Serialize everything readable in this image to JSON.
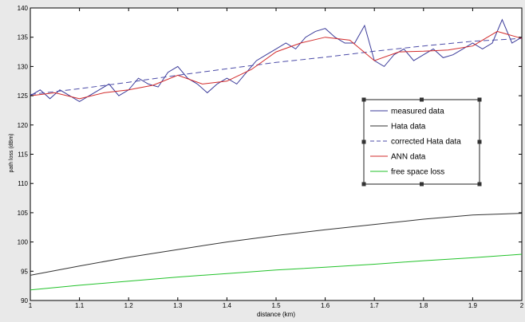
{
  "chart_data": {
    "type": "line",
    "xlabel": "distance (km)",
    "ylabel": "path loss (dBm)",
    "xlim": [
      1,
      2
    ],
    "ylim": [
      90,
      140
    ],
    "x_ticks": [
      "1",
      "1.1",
      "1.2",
      "1.3",
      "1.4",
      "1.5",
      "1.6",
      "1.7",
      "1.8",
      "1.9",
      "2"
    ],
    "y_ticks": [
      "90",
      "95",
      "100",
      "105",
      "110",
      "115",
      "120",
      "125",
      "130",
      "135",
      "140"
    ],
    "grid": false,
    "legend_position": "center-right",
    "series": [
      {
        "name": "measured data",
        "color": "#3b3b9a",
        "style": "solid",
        "x": [
          1.0,
          1.02,
          1.04,
          1.06,
          1.08,
          1.1,
          1.12,
          1.14,
          1.16,
          1.18,
          1.2,
          1.22,
          1.24,
          1.26,
          1.28,
          1.3,
          1.32,
          1.34,
          1.36,
          1.38,
          1.4,
          1.42,
          1.44,
          1.46,
          1.48,
          1.5,
          1.52,
          1.54,
          1.56,
          1.58,
          1.6,
          1.62,
          1.64,
          1.66,
          1.68,
          1.7,
          1.72,
          1.74,
          1.76,
          1.78,
          1.8,
          1.82,
          1.84,
          1.86,
          1.88,
          1.9,
          1.92,
          1.94,
          1.96,
          1.98,
          2.0
        ],
        "values": [
          125,
          126,
          124.5,
          126,
          125,
          124,
          125,
          126,
          127,
          125,
          126,
          128,
          127,
          126.5,
          129,
          130,
          128,
          127,
          125.5,
          127,
          128,
          127,
          129,
          131,
          132,
          133,
          134,
          133,
          135,
          136,
          136.5,
          135,
          134,
          134,
          137,
          131,
          130,
          132,
          133,
          131,
          132,
          133,
          131.5,
          132,
          133,
          134,
          133,
          134,
          138,
          134,
          135
        ]
      },
      {
        "name": "Hata data",
        "color": "#333333",
        "style": "solid",
        "x": [
          1.0,
          1.1,
          1.2,
          1.3,
          1.4,
          1.5,
          1.6,
          1.7,
          1.8,
          1.9,
          2.0
        ],
        "values": [
          94.3,
          95.9,
          97.4,
          98.7,
          100.0,
          101.1,
          102.1,
          103.0,
          103.9,
          104.6,
          104.9
        ]
      },
      {
        "name": "corrected Hata data",
        "color": "#4c4ca8",
        "style": "dashed",
        "x": [
          1.0,
          1.1,
          1.2,
          1.3,
          1.4,
          1.5,
          1.6,
          1.7,
          1.8,
          1.9,
          2.0
        ],
        "values": [
          125.2,
          126.2,
          127.3,
          128.5,
          129.6,
          130.7,
          131.6,
          132.6,
          133.5,
          134.3,
          134.8
        ]
      },
      {
        "name": "ANN data",
        "color": "#d22b2b",
        "style": "solid",
        "x": [
          1.0,
          1.05,
          1.1,
          1.15,
          1.2,
          1.25,
          1.3,
          1.35,
          1.4,
          1.45,
          1.5,
          1.55,
          1.6,
          1.65,
          1.7,
          1.75,
          1.8,
          1.85,
          1.9,
          1.95,
          2.0
        ],
        "values": [
          125,
          125.5,
          124.5,
          125.5,
          126,
          126.8,
          128.5,
          127,
          127.5,
          129.5,
          132.5,
          134,
          135,
          134.5,
          131,
          132.5,
          132.6,
          132.8,
          133.5,
          136,
          134.8
        ]
      },
      {
        "name": "free space loss",
        "color": "#22c22a",
        "style": "solid",
        "x": [
          1.0,
          1.1,
          1.2,
          1.3,
          1.4,
          1.5,
          1.6,
          1.7,
          1.8,
          1.9,
          2.0
        ],
        "values": [
          91.8,
          92.6,
          93.3,
          94.0,
          94.6,
          95.2,
          95.7,
          96.2,
          96.8,
          97.3,
          97.9
        ]
      }
    ]
  }
}
